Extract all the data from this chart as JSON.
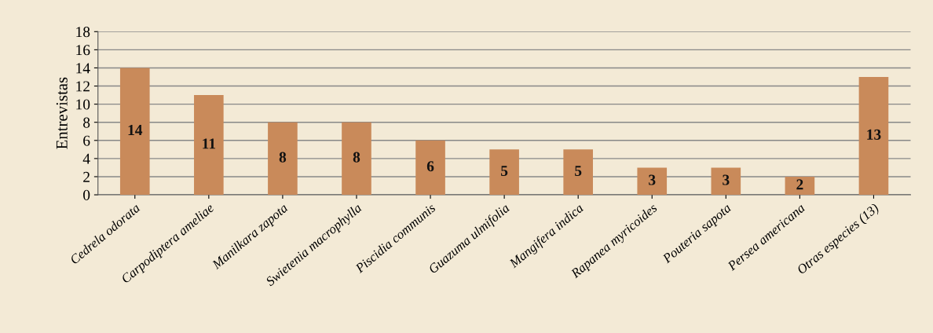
{
  "chart_data": {
    "type": "bar",
    "ylabel": "Entrevistas",
    "categories": [
      "Cedrela odorata",
      "Carpodiptera ameliae",
      "Manilkara zapota",
      "Swietenia macrophylla",
      "Piscidia communis",
      "Guazuma ulmifolia",
      "Mangifera indica",
      "Rapanea myricoides",
      "Pouteria sapota",
      "Persea americana",
      "Otras especies (13)"
    ],
    "values": [
      14,
      11,
      8,
      8,
      6,
      5,
      5,
      3,
      3,
      2,
      13
    ],
    "color": "#c98a5a",
    "ylim": [
      0,
      18
    ],
    "yticks": [
      0,
      2,
      4,
      6,
      8,
      10,
      12,
      14,
      16,
      18
    ],
    "grid": "y",
    "data_labels": true,
    "legend": false
  }
}
